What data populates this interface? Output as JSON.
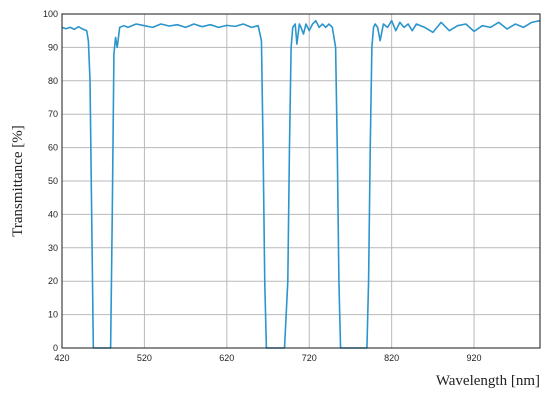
{
  "chart_data": {
    "type": "line",
    "title": "",
    "xlabel": "Wavelength [nm]",
    "ylabel": "Transmittance [%]",
    "xlim": [
      420,
      1000
    ],
    "ylim": [
      0,
      100
    ],
    "x_ticks": [
      420,
      520,
      620,
      720,
      820,
      920
    ],
    "y_ticks": [
      0,
      10,
      20,
      30,
      40,
      50,
      60,
      70,
      80,
      90,
      100
    ],
    "grid": true,
    "legend": "none",
    "series_color": "#2b95cc",
    "series": [
      {
        "x": [
          420,
          425,
          430,
          435,
          440,
          445,
          450,
          452,
          454,
          456,
          458,
          460,
          465,
          470,
          475,
          479,
          481,
          483,
          485,
          487,
          490,
          495,
          500,
          510,
          520,
          530,
          540,
          550,
          560,
          570,
          580,
          590,
          600,
          610,
          620,
          630,
          640,
          650,
          658,
          662,
          664,
          666,
          668,
          670,
          675,
          680,
          685,
          690,
          694,
          696,
          698,
          700,
          703,
          705,
          708,
          710,
          713,
          716,
          720,
          724,
          728,
          732,
          736,
          740,
          744,
          748,
          752,
          754,
          756,
          758,
          760,
          765,
          770,
          775,
          780,
          785,
          790,
          792,
          794,
          796,
          798,
          800,
          803,
          806,
          810,
          815,
          820,
          825,
          830,
          835,
          840,
          845,
          850,
          860,
          870,
          880,
          890,
          900,
          910,
          920,
          930,
          940,
          950,
          960,
          970,
          980,
          990,
          1000
        ],
        "y": [
          96,
          95.6,
          96,
          95.4,
          96.2,
          95.5,
          95,
          92,
          80,
          40,
          0,
          0,
          0,
          0,
          0,
          0,
          40,
          88,
          93,
          90,
          96,
          96.5,
          96,
          97,
          96.5,
          96,
          97,
          96.4,
          96.8,
          96,
          97,
          96.2,
          96.8,
          96,
          96.6,
          96.3,
          97,
          96,
          96.5,
          92,
          60,
          20,
          0,
          0,
          0,
          0,
          0,
          0,
          20,
          60,
          90,
          96,
          97,
          91,
          97,
          96,
          94,
          97,
          95,
          97,
          98,
          96,
          97,
          96,
          97,
          96,
          90,
          60,
          20,
          0,
          0,
          0,
          0,
          0,
          0,
          0,
          0,
          20,
          60,
          90,
          96,
          97,
          96,
          92,
          97,
          96,
          98,
          95,
          97.5,
          96,
          97,
          95,
          97,
          96,
          94.5,
          97.5,
          95,
          96.5,
          97,
          94.8,
          96.5,
          96,
          97.5,
          95.5,
          97,
          96,
          97.5,
          98
        ]
      }
    ]
  }
}
